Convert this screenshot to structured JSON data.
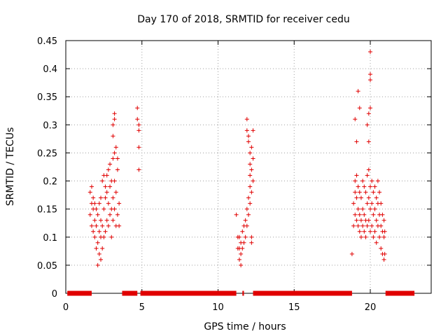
{
  "chart_data": {
    "type": "scatter",
    "title": "Day 170 of 2018, SRMTID for receiver cedu",
    "xlabel": "GPS time / hours",
    "ylabel": "SRMTID / TECUs",
    "xlim": [
      0,
      24
    ],
    "ylim": [
      0,
      0.45
    ],
    "xticks": [
      0,
      5,
      10,
      15,
      20
    ],
    "yticks": [
      0,
      0.05,
      0.1,
      0.15,
      0.2,
      0.25,
      0.3,
      0.35,
      0.4,
      0.45
    ],
    "ytick_labels": [
      "0",
      "0.05",
      "0.1",
      "0.15",
      "0.2",
      "0.25",
      "0.3",
      "0.35",
      "0.4",
      "0.45"
    ],
    "grid": true,
    "marker": "+",
    "color": "#e00000",
    "zero_segments": [
      [
        0.1,
        1.7
      ],
      [
        3.7,
        4.7
      ],
      [
        4.9,
        11.2
      ],
      [
        11.6,
        11.7
      ],
      [
        12.3,
        18.8
      ],
      [
        21.0,
        22.9
      ]
    ],
    "series": [
      {
        "name": "SRMTID",
        "x": [
          1.6,
          1.6,
          1.7,
          1.7,
          1.7,
          1.8,
          1.8,
          1.8,
          1.9,
          1.9,
          1.9,
          2.0,
          2.0,
          2.0,
          2.1,
          2.1,
          2.1,
          2.2,
          2.2,
          2.2,
          2.3,
          2.3,
          2.3,
          2.3,
          2.4,
          2.4,
          2.4,
          2.5,
          2.5,
          2.5,
          2.6,
          2.6,
          2.6,
          2.7,
          2.7,
          2.7,
          2.8,
          2.8,
          2.8,
          2.9,
          2.9,
          2.9,
          3.0,
          3.0,
          3.0,
          3.1,
          3.1,
          3.1,
          3.2,
          3.2,
          3.2,
          3.3,
          3.3,
          3.3,
          3.4,
          3.4,
          3.4,
          3.5,
          3.5,
          3.1,
          3.1,
          3.2,
          3.2,
          4.7,
          4.7,
          4.8,
          4.8,
          4.8,
          4.8,
          11.2,
          11.3,
          11.3,
          11.4,
          11.4,
          11.4,
          11.5,
          11.5,
          11.5,
          11.6,
          11.6,
          11.7,
          11.7,
          11.8,
          11.8,
          11.9,
          11.9,
          12.0,
          12.0,
          12.1,
          12.1,
          12.1,
          12.2,
          12.2,
          12.2,
          12.3,
          12.3,
          12.3,
          11.9,
          11.9,
          12.0,
          12.0,
          12.1,
          12.1,
          12.2,
          12.2,
          18.8,
          18.9,
          18.9,
          19.0,
          19.0,
          19.0,
          19.1,
          19.1,
          19.1,
          19.2,
          19.2,
          19.2,
          19.3,
          19.3,
          19.3,
          19.4,
          19.4,
          19.4,
          19.5,
          19.5,
          19.5,
          19.6,
          19.6,
          19.6,
          19.7,
          19.7,
          19.7,
          19.8,
          19.8,
          19.8,
          19.9,
          19.9,
          19.9,
          20.0,
          20.0,
          20.0,
          20.1,
          20.1,
          20.1,
          20.2,
          20.2,
          20.2,
          20.3,
          20.3,
          20.3,
          20.4,
          20.4,
          20.4,
          20.5,
          20.5,
          20.5,
          20.6,
          20.6,
          20.6,
          20.7,
          20.7,
          20.7,
          20.8,
          20.8,
          20.8,
          20.9,
          20.9,
          20.9,
          20.95,
          20.95,
          19.2,
          19.3,
          19.0,
          19.1,
          19.8,
          19.9,
          20.0,
          20.0,
          20.0,
          20.0,
          20.0,
          19.9
        ],
        "y": [
          0.18,
          0.14,
          0.19,
          0.12,
          0.16,
          0.11,
          0.15,
          0.17,
          0.1,
          0.13,
          0.16,
          0.08,
          0.12,
          0.15,
          0.05,
          0.09,
          0.14,
          0.07,
          0.11,
          0.16,
          0.06,
          0.1,
          0.13,
          0.17,
          0.08,
          0.12,
          0.2,
          0.1,
          0.15,
          0.21,
          0.11,
          0.17,
          0.19,
          0.13,
          0.18,
          0.21,
          0.12,
          0.16,
          0.22,
          0.14,
          0.19,
          0.23,
          0.1,
          0.15,
          0.2,
          0.13,
          0.17,
          0.24,
          0.15,
          0.2,
          0.25,
          0.12,
          0.18,
          0.26,
          0.14,
          0.22,
          0.24,
          0.12,
          0.16,
          0.3,
          0.28,
          0.32,
          0.31,
          0.33,
          0.31,
          0.29,
          0.3,
          0.26,
          0.22,
          0.14,
          0.08,
          0.1,
          0.06,
          0.08,
          0.1,
          0.05,
          0.07,
          0.09,
          0.08,
          0.11,
          0.09,
          0.12,
          0.1,
          0.13,
          0.12,
          0.15,
          0.14,
          0.17,
          0.16,
          0.19,
          0.21,
          0.18,
          0.22,
          0.26,
          0.2,
          0.24,
          0.29,
          0.31,
          0.29,
          0.28,
          0.27,
          0.25,
          0.23,
          0.1,
          0.09,
          0.07,
          0.12,
          0.16,
          0.14,
          0.18,
          0.2,
          0.13,
          0.17,
          0.21,
          0.12,
          0.15,
          0.19,
          0.11,
          0.14,
          0.18,
          0.1,
          0.13,
          0.17,
          0.12,
          0.15,
          0.2,
          0.11,
          0.14,
          0.19,
          0.1,
          0.13,
          0.18,
          0.12,
          0.16,
          0.21,
          0.13,
          0.17,
          0.22,
          0.11,
          0.15,
          0.19,
          0.12,
          0.16,
          0.2,
          0.1,
          0.14,
          0.18,
          0.11,
          0.15,
          0.19,
          0.09,
          0.13,
          0.17,
          0.12,
          0.16,
          0.2,
          0.1,
          0.14,
          0.18,
          0.08,
          0.12,
          0.16,
          0.07,
          0.11,
          0.14,
          0.06,
          0.1,
          0.13,
          0.07,
          0.11,
          0.36,
          0.33,
          0.31,
          0.27,
          0.3,
          0.27,
          0.43,
          0.43,
          0.39,
          0.38,
          0.33,
          0.32
        ]
      }
    ]
  }
}
